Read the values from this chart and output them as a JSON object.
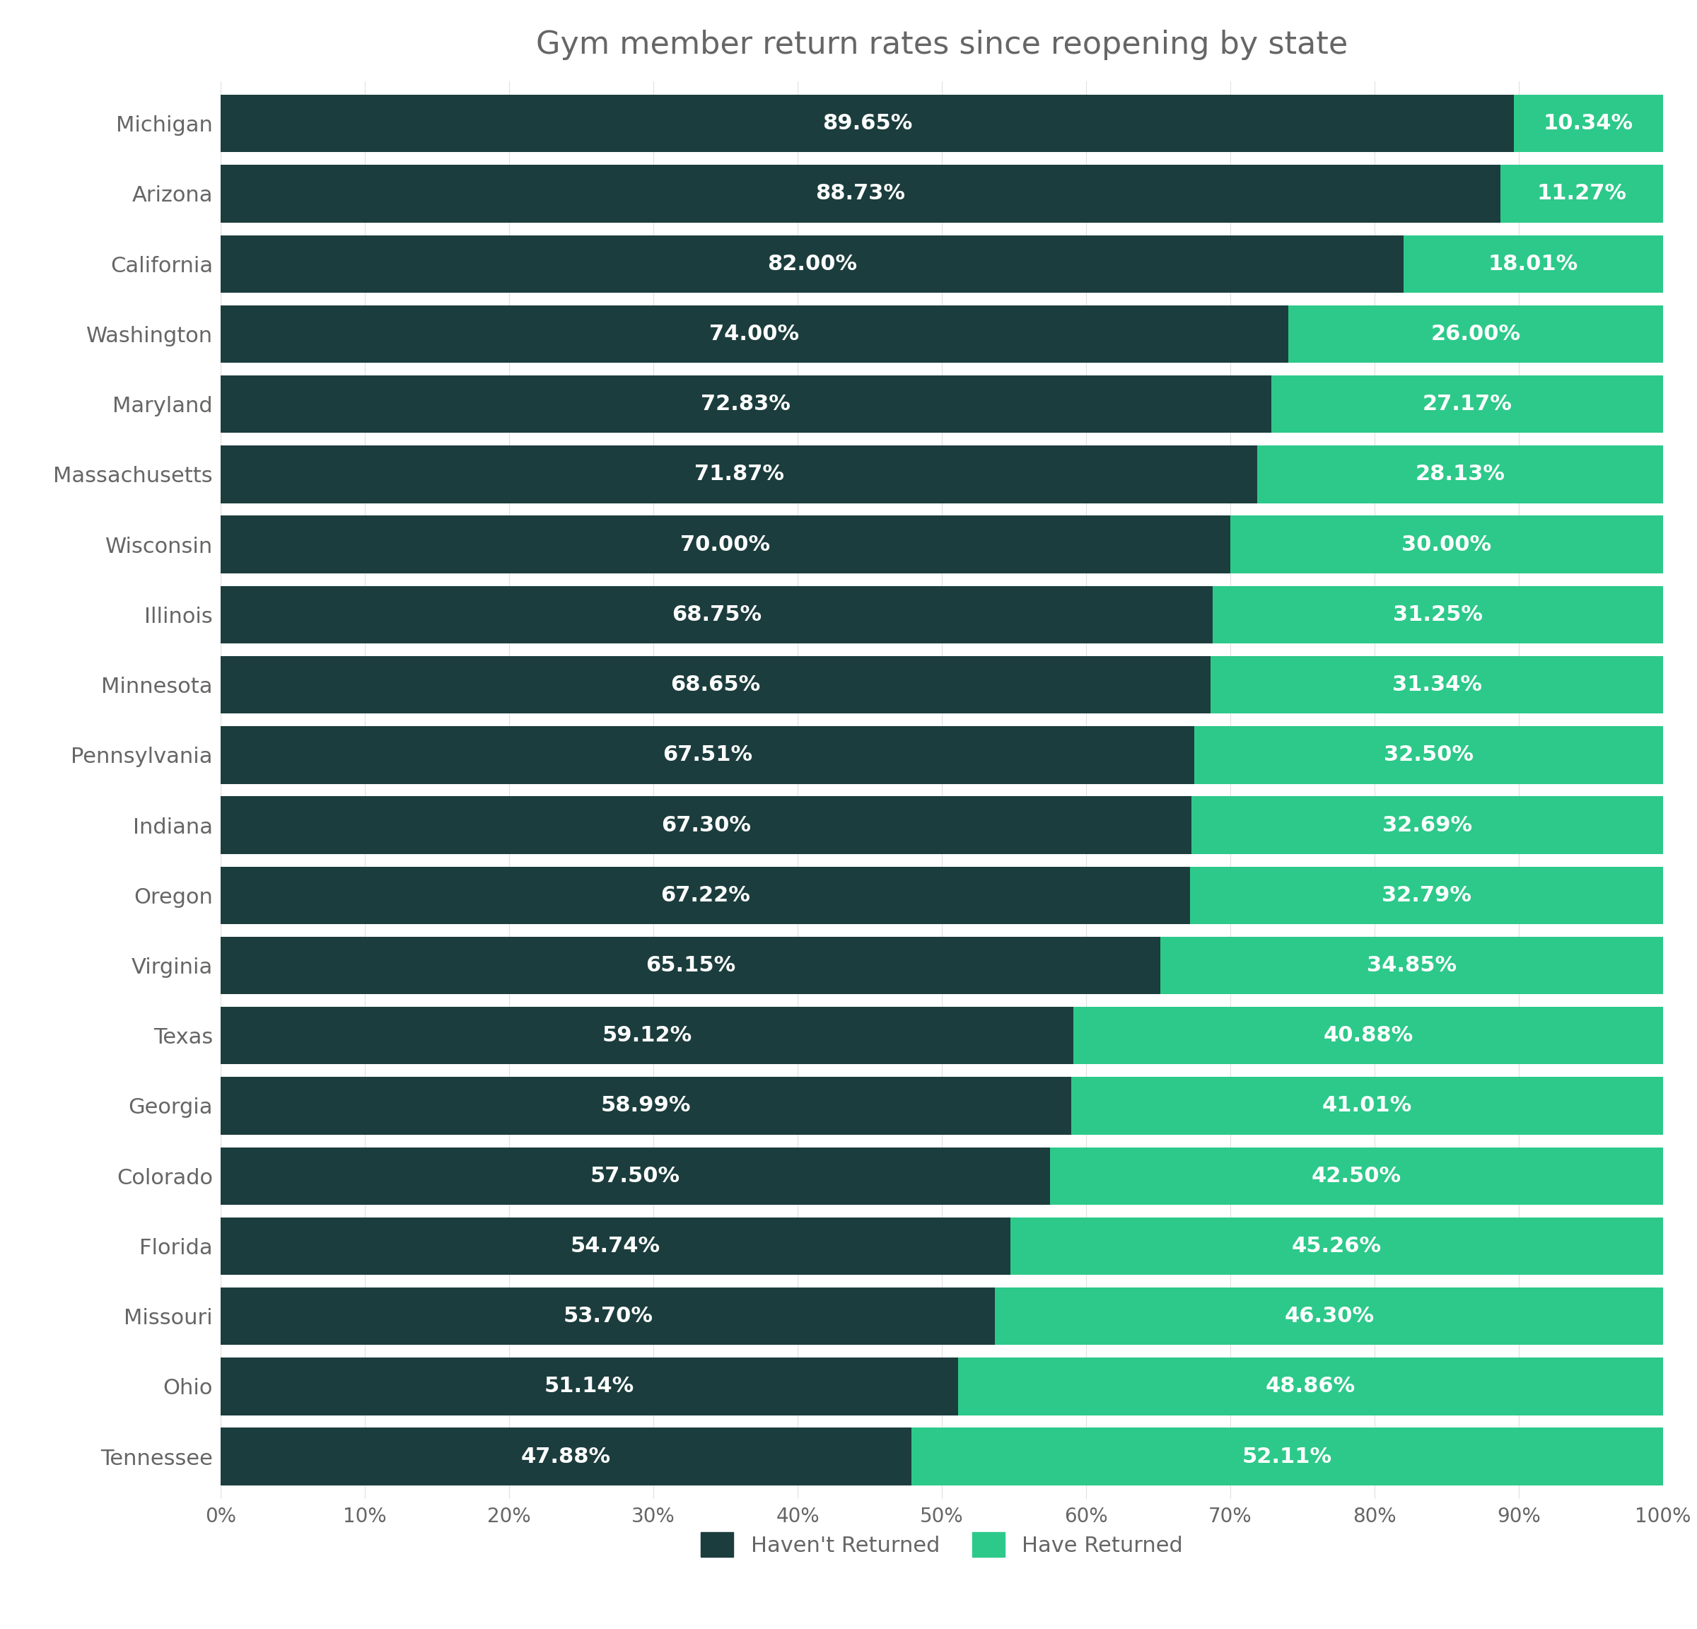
{
  "title": "Gym member return rates since reopening by state",
  "states": [
    "Michigan",
    "Arizona",
    "California",
    "Washington",
    "Maryland",
    "Massachusetts",
    "Wisconsin",
    "Illinois",
    "Minnesota",
    "Pennsylvania",
    "Indiana",
    "Oregon",
    "Virginia",
    "Texas",
    "Georgia",
    "Colorado",
    "Florida",
    "Missouri",
    "Ohio",
    "Tennessee"
  ],
  "not_returned": [
    89.65,
    88.73,
    82.0,
    74.0,
    72.83,
    71.87,
    70.0,
    68.75,
    68.65,
    67.51,
    67.3,
    67.22,
    65.15,
    59.12,
    58.99,
    57.5,
    54.74,
    53.7,
    51.14,
    47.88
  ],
  "returned": [
    10.34,
    11.27,
    18.01,
    26.0,
    27.17,
    28.13,
    30.0,
    31.25,
    31.34,
    32.5,
    32.69,
    32.79,
    34.85,
    40.88,
    41.01,
    42.5,
    45.26,
    46.3,
    48.86,
    52.11
  ],
  "not_returned_labels": [
    "89.65%",
    "88.73%",
    "82.00%",
    "74.00%",
    "72.83%",
    "71.87%",
    "70.00%",
    "68.75%",
    "68.65%",
    "67.51%",
    "67.30%",
    "67.22%",
    "65.15%",
    "59.12%",
    "58.99%",
    "57.50%",
    "54.74%",
    "53.70%",
    "51.14%",
    "47.88%"
  ],
  "returned_labels": [
    "10.34%",
    "11.27%",
    "18.01%",
    "26.00%",
    "27.17%",
    "28.13%",
    "30.00%",
    "31.25%",
    "31.34%",
    "32.50%",
    "32.69%",
    "32.79%",
    "34.85%",
    "40.88%",
    "41.01%",
    "42.50%",
    "45.26%",
    "46.30%",
    "48.86%",
    "52.11%"
  ],
  "color_not_returned": "#1c3d3d",
  "color_returned": "#2dc98a",
  "background_color": "#ffffff",
  "text_color": "#666666",
  "bar_text_color": "#ffffff",
  "title_fontsize": 32,
  "label_fontsize": 22,
  "tick_fontsize": 20,
  "legend_fontsize": 22,
  "bar_height": 0.82,
  "figsize": [
    24,
    23.04
  ]
}
